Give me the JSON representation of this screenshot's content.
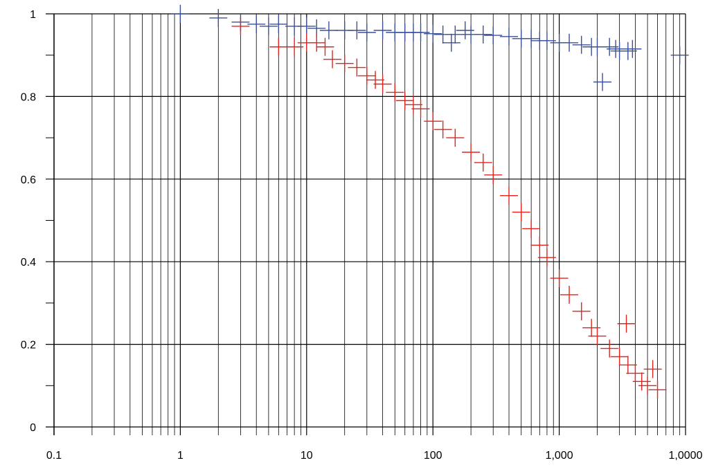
{
  "chart_data": {
    "type": "scatter",
    "title": "",
    "xlabel": "",
    "ylabel": "",
    "x_scale": "log",
    "xlim": [
      0.1,
      10000
    ],
    "ylim": [
      0,
      1
    ],
    "grid": true,
    "marker": "plus",
    "x_ticks": [
      {
        "value": 0.1,
        "label": "0.1"
      },
      {
        "value": 1,
        "label": "1"
      },
      {
        "value": 10,
        "label": "10"
      },
      {
        "value": 100,
        "label": "100"
      },
      {
        "value": 1000,
        "label": "1,000"
      },
      {
        "value": 10000,
        "label": "1,0000"
      }
    ],
    "y_ticks": [
      {
        "value": 0,
        "label": "0"
      },
      {
        "value": 0.2,
        "label": "0.2"
      },
      {
        "value": 0.4,
        "label": "0.4"
      },
      {
        "value": 0.6,
        "label": "0.6"
      },
      {
        "value": 0.8,
        "label": "0.8"
      },
      {
        "value": 1,
        "label": "1"
      }
    ],
    "series": [
      {
        "color": "#3a4f9a",
        "points": [
          [
            1,
            1.0
          ],
          [
            2,
            0.99
          ],
          [
            3,
            0.98
          ],
          [
            4,
            0.975
          ],
          [
            5,
            0.97
          ],
          [
            6,
            0.975
          ],
          [
            8,
            0.97
          ],
          [
            10,
            0.97
          ],
          [
            12,
            0.965
          ],
          [
            15,
            0.96
          ],
          [
            20,
            0.96
          ],
          [
            25,
            0.96
          ],
          [
            30,
            0.955
          ],
          [
            40,
            0.96
          ],
          [
            50,
            0.955
          ],
          [
            60,
            0.955
          ],
          [
            70,
            0.955
          ],
          [
            80,
            0.955
          ],
          [
            100,
            0.952
          ],
          [
            120,
            0.95
          ],
          [
            140,
            0.93
          ],
          [
            150,
            0.95
          ],
          [
            180,
            0.96
          ],
          [
            200,
            0.95
          ],
          [
            250,
            0.95
          ],
          [
            300,
            0.948
          ],
          [
            400,
            0.945
          ],
          [
            500,
            0.94
          ],
          [
            600,
            0.94
          ],
          [
            700,
            0.935
          ],
          [
            800,
            0.935
          ],
          [
            1000,
            0.93
          ],
          [
            1200,
            0.93
          ],
          [
            1500,
            0.925
          ],
          [
            1800,
            0.92
          ],
          [
            2000,
            0.92
          ],
          [
            2200,
            0.835
          ],
          [
            2500,
            0.92
          ],
          [
            2800,
            0.915
          ],
          [
            3000,
            0.91
          ],
          [
            3500,
            0.91
          ],
          [
            3800,
            0.915
          ],
          [
            9000,
            0.9
          ]
        ]
      },
      {
        "color": "#e3231c",
        "points": [
          [
            3,
            0.97
          ],
          [
            6,
            0.92
          ],
          [
            8,
            0.92
          ],
          [
            10,
            0.93
          ],
          [
            12,
            0.93
          ],
          [
            14,
            0.92
          ],
          [
            16,
            0.89
          ],
          [
            20,
            0.88
          ],
          [
            25,
            0.87
          ],
          [
            30,
            0.85
          ],
          [
            35,
            0.84
          ],
          [
            40,
            0.83
          ],
          [
            50,
            0.81
          ],
          [
            60,
            0.79
          ],
          [
            70,
            0.78
          ],
          [
            80,
            0.77
          ],
          [
            100,
            0.74
          ],
          [
            120,
            0.72
          ],
          [
            150,
            0.7
          ],
          [
            200,
            0.665
          ],
          [
            250,
            0.64
          ],
          [
            300,
            0.61
          ],
          [
            400,
            0.56
          ],
          [
            500,
            0.52
          ],
          [
            600,
            0.48
          ],
          [
            700,
            0.44
          ],
          [
            800,
            0.41
          ],
          [
            1000,
            0.36
          ],
          [
            1200,
            0.32
          ],
          [
            1500,
            0.28
          ],
          [
            1800,
            0.24
          ],
          [
            2000,
            0.22
          ],
          [
            2500,
            0.19
          ],
          [
            3000,
            0.17
          ],
          [
            3400,
            0.25
          ],
          [
            3500,
            0.15
          ],
          [
            4000,
            0.13
          ],
          [
            4500,
            0.11
          ],
          [
            5000,
            0.1
          ],
          [
            5500,
            0.14
          ],
          [
            6000,
            0.09
          ]
        ]
      }
    ]
  }
}
